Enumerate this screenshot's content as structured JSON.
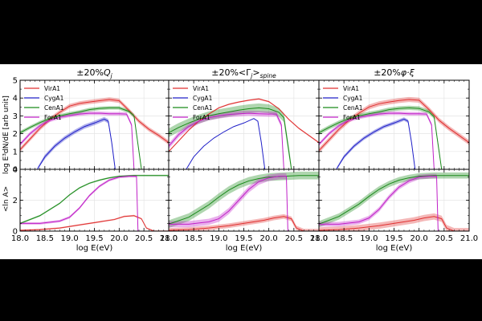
{
  "figure": {
    "ylabel_top": "log E³dN/dE [arb unit]",
    "ylabel_bottom": "<ln A>"
  },
  "chart_data": [
    {
      "type": "line",
      "title": "±20%Q_j",
      "title_parts": [
        "±20%",
        "Q",
        "j"
      ],
      "xlabel": "log E(eV)",
      "xlim": [
        18.0,
        21.0
      ],
      "xticks": [
        "18.0",
        "18.5",
        "19.0",
        "19.5",
        "20.0",
        "20.5",
        "21.0"
      ],
      "top": {
        "ylim": [
          0,
          5
        ],
        "yticks": [
          "0",
          "1",
          "2",
          "3",
          "4",
          "5"
        ],
        "legend_position": "top-left",
        "series": [
          {
            "name": "VirA1",
            "color": "#e03030",
            "band": 0.12,
            "x": [
              18.0,
              18.2,
              18.4,
              18.6,
              18.8,
              19.0,
              19.2,
              19.4,
              19.6,
              19.8,
              20.0,
              20.2,
              20.4,
              20.6,
              20.8,
              21.0
            ],
            "y": [
              1.1,
              1.7,
              2.3,
              2.8,
              3.2,
              3.55,
              3.7,
              3.78,
              3.85,
              3.92,
              3.85,
              3.3,
              2.7,
              2.25,
              1.9,
              1.5
            ]
          },
          {
            "name": "CygA1",
            "color": "#2020c8",
            "band": 0.12,
            "x": [
              18.35,
              18.5,
              18.7,
              18.9,
              19.1,
              19.3,
              19.5,
              19.7,
              19.78,
              19.85,
              19.92
            ],
            "y": [
              0.0,
              0.7,
              1.3,
              1.75,
              2.1,
              2.4,
              2.6,
              2.82,
              2.7,
              1.5,
              0.0
            ]
          },
          {
            "name": "CenA1",
            "color": "#1a8a1a",
            "band": 0.1,
            "x": [
              18.0,
              18.2,
              18.4,
              18.6,
              18.8,
              19.0,
              19.2,
              19.4,
              19.6,
              19.8,
              20.0,
              20.2,
              20.3,
              20.4,
              20.45
            ],
            "y": [
              2.05,
              2.35,
              2.62,
              2.85,
              3.0,
              3.12,
              3.22,
              3.35,
              3.42,
              3.45,
              3.45,
              3.25,
              3.0,
              1.0,
              0.0
            ]
          },
          {
            "name": "ForA1",
            "color": "#c020c8",
            "band": 0.1,
            "x": [
              18.0,
              18.2,
              18.4,
              18.6,
              18.8,
              19.0,
              19.2,
              19.4,
              19.6,
              19.8,
              20.0,
              20.15,
              20.25,
              20.3
            ],
            "y": [
              1.4,
              2.0,
              2.45,
              2.75,
              2.92,
              3.02,
              3.1,
              3.15,
              3.15,
              3.12,
              3.12,
              3.1,
              2.5,
              0.0
            ]
          }
        ]
      },
      "bottom": {
        "ylim": [
          0,
          4
        ],
        "yticks": [
          "0",
          "2",
          "4"
        ],
        "series": [
          {
            "name": "VirA1",
            "color": "#e03030",
            "band": 0.05,
            "x": [
              18.0,
              18.4,
              18.8,
              19.2,
              19.6,
              19.9,
              20.1,
              20.3,
              20.45,
              20.55,
              20.7,
              21.0
            ],
            "y": [
              0.05,
              0.1,
              0.2,
              0.4,
              0.6,
              0.75,
              0.95,
              1.0,
              0.8,
              0.2,
              0.0,
              0.0
            ]
          },
          {
            "name": "CenA1",
            "color": "#1a8a1a",
            "band": 0.05,
            "x": [
              18.0,
              18.4,
              18.8,
              19.0,
              19.2,
              19.4,
              19.6,
              19.8,
              20.0,
              20.3,
              20.6,
              21.0
            ],
            "y": [
              0.5,
              1.0,
              1.8,
              2.35,
              2.8,
              3.1,
              3.3,
              3.45,
              3.55,
              3.6,
              3.6,
              3.6
            ]
          },
          {
            "name": "ForA1",
            "color": "#c020c8",
            "band": 0.08,
            "x": [
              18.0,
              18.4,
              18.8,
              19.0,
              19.2,
              19.4,
              19.6,
              19.8,
              20.0,
              20.2,
              20.35,
              20.38
            ],
            "y": [
              0.5,
              0.5,
              0.65,
              0.9,
              1.5,
              2.3,
              2.9,
              3.3,
              3.5,
              3.55,
              3.55,
              0.0
            ]
          }
        ]
      }
    },
    {
      "type": "line",
      "title": "±20%<Γ_j>_spine",
      "title_parts": [
        "±20%<Γ",
        "j",
        ">",
        "spine"
      ],
      "xlabel": "log E(eV)",
      "xlim": [
        18.0,
        21.0
      ],
      "xticks": [
        "18.0",
        "18.5",
        "19.0",
        "19.5",
        "20.0",
        "20.5",
        "21.0"
      ],
      "top": {
        "ylim": [
          0,
          5
        ],
        "yticks": [
          "0",
          "1",
          "2",
          "3",
          "4",
          "5"
        ],
        "legend_position": "top-left",
        "series": [
          {
            "name": "VirA1",
            "color": "#e03030",
            "band": 0.04,
            "x": [
              18.0,
              18.2,
              18.4,
              18.6,
              18.8,
              19.0,
              19.2,
              19.4,
              19.6,
              19.8,
              20.0,
              20.2,
              20.4,
              20.6,
              20.8,
              21.0
            ],
            "y": [
              1.0,
              1.6,
              2.2,
              2.7,
              3.1,
              3.45,
              3.65,
              3.78,
              3.88,
              3.95,
              3.8,
              3.4,
              2.8,
              2.3,
              1.9,
              1.5
            ]
          },
          {
            "name": "CygA1",
            "color": "#2020c8",
            "band": 0.0,
            "x": [
              18.35,
              18.5,
              18.7,
              18.9,
              19.1,
              19.3,
              19.5,
              19.7,
              19.78,
              19.85,
              19.92
            ],
            "y": [
              0.0,
              0.7,
              1.3,
              1.75,
              2.1,
              2.4,
              2.6,
              2.85,
              2.7,
              1.5,
              0.0
            ]
          },
          {
            "name": "CenA1",
            "color": "#1a8a1a",
            "band": 0.25,
            "x": [
              18.0,
              18.2,
              18.4,
              18.6,
              18.8,
              19.0,
              19.2,
              19.4,
              19.6,
              19.8,
              20.0,
              20.2,
              20.3,
              20.4,
              20.45
            ],
            "y": [
              2.05,
              2.35,
              2.6,
              2.82,
              3.0,
              3.12,
              3.22,
              3.32,
              3.4,
              3.45,
              3.4,
              3.2,
              2.9,
              1.0,
              0.0
            ]
          },
          {
            "name": "ForA1",
            "color": "#c020c8",
            "band": 0.15,
            "x": [
              18.0,
              18.2,
              18.4,
              18.6,
              18.8,
              19.0,
              19.2,
              19.4,
              19.6,
              19.8,
              20.0,
              20.15,
              20.25,
              20.3
            ],
            "y": [
              1.3,
              1.95,
              2.4,
              2.7,
              2.9,
              3.0,
              3.08,
              3.12,
              3.15,
              3.12,
              3.1,
              3.1,
              2.5,
              0.0
            ]
          }
        ]
      },
      "bottom": {
        "ylim": [
          0,
          4
        ],
        "yticks": [
          "0",
          "2",
          "4"
        ],
        "series": [
          {
            "name": "VirA1",
            "color": "#e03030",
            "band": 0.15,
            "x": [
              18.0,
              18.4,
              18.8,
              19.2,
              19.6,
              19.9,
              20.1,
              20.3,
              20.45,
              20.55,
              20.7,
              21.0
            ],
            "y": [
              0.05,
              0.1,
              0.2,
              0.35,
              0.55,
              0.7,
              0.85,
              0.95,
              0.8,
              0.2,
              0.0,
              0.0
            ]
          },
          {
            "name": "CenA1",
            "color": "#1a8a1a",
            "band": 0.25,
            "x": [
              18.0,
              18.4,
              18.8,
              19.0,
              19.2,
              19.4,
              19.6,
              19.8,
              20.0,
              20.3,
              20.6,
              21.0
            ],
            "y": [
              0.45,
              0.9,
              1.7,
              2.2,
              2.65,
              3.0,
              3.25,
              3.4,
              3.5,
              3.55,
              3.6,
              3.6
            ]
          },
          {
            "name": "ForA1",
            "color": "#c020c8",
            "band": 0.2,
            "x": [
              18.0,
              18.4,
              18.8,
              19.0,
              19.2,
              19.4,
              19.6,
              19.8,
              20.0,
              20.2,
              20.35,
              20.38
            ],
            "y": [
              0.45,
              0.45,
              0.6,
              0.8,
              1.3,
              2.0,
              2.7,
              3.2,
              3.45,
              3.55,
              3.55,
              0.0
            ]
          }
        ]
      }
    },
    {
      "type": "line",
      "title": "±20%φ·ξ",
      "title_parts": [
        "±20%",
        "φ·ξ"
      ],
      "xlabel": "log E(eV)",
      "xlim": [
        18.0,
        21.0
      ],
      "xticks": [
        "18.0",
        "18.5",
        "19.0",
        "19.5",
        "20.0",
        "20.5",
        "21.0"
      ],
      "top": {
        "ylim": [
          0,
          5
        ],
        "yticks": [
          "0",
          "1",
          "2",
          "3",
          "4",
          "5"
        ],
        "legend_position": "top-left",
        "series": [
          {
            "name": "VirA1",
            "color": "#e03030",
            "band": 0.14,
            "x": [
              18.0,
              18.2,
              18.4,
              18.6,
              18.8,
              19.0,
              19.2,
              19.4,
              19.6,
              19.8,
              20.0,
              20.2,
              20.4,
              20.6,
              20.8,
              21.0
            ],
            "y": [
              1.05,
              1.65,
              2.25,
              2.75,
              3.15,
              3.5,
              3.68,
              3.78,
              3.86,
              3.92,
              3.88,
              3.35,
              2.75,
              2.3,
              1.9,
              1.5
            ]
          },
          {
            "name": "CygA1",
            "color": "#2020c8",
            "band": 0.1,
            "x": [
              18.35,
              18.5,
              18.7,
              18.9,
              19.1,
              19.3,
              19.5,
              19.7,
              19.78,
              19.85,
              19.92
            ],
            "y": [
              0.0,
              0.7,
              1.3,
              1.75,
              2.1,
              2.4,
              2.6,
              2.82,
              2.7,
              1.5,
              0.0
            ]
          },
          {
            "name": "CenA1",
            "color": "#1a8a1a",
            "band": 0.12,
            "x": [
              18.0,
              18.2,
              18.4,
              18.6,
              18.8,
              19.0,
              19.2,
              19.4,
              19.6,
              19.8,
              20.0,
              20.2,
              20.3,
              20.4,
              20.45
            ],
            "y": [
              2.05,
              2.35,
              2.62,
              2.85,
              3.0,
              3.12,
              3.22,
              3.35,
              3.42,
              3.45,
              3.42,
              3.22,
              2.95,
              1.0,
              0.0
            ]
          },
          {
            "name": "ForA1",
            "color": "#c020c8",
            "band": 0.1,
            "x": [
              18.0,
              18.2,
              18.4,
              18.6,
              18.8,
              19.0,
              19.2,
              19.4,
              19.6,
              19.8,
              20.0,
              20.15,
              20.25,
              20.3
            ],
            "y": [
              1.4,
              2.0,
              2.45,
              2.75,
              2.92,
              3.02,
              3.1,
              3.15,
              3.15,
              3.12,
              3.12,
              3.1,
              2.5,
              0.0
            ]
          }
        ]
      },
      "bottom": {
        "ylim": [
          0,
          4
        ],
        "yticks": [
          "0",
          "2",
          "4"
        ],
        "series": [
          {
            "name": "VirA1",
            "color": "#e03030",
            "band": 0.2,
            "x": [
              18.0,
              18.4,
              18.8,
              19.2,
              19.6,
              19.9,
              20.1,
              20.3,
              20.45,
              20.55,
              20.7,
              21.0
            ],
            "y": [
              0.05,
              0.1,
              0.2,
              0.35,
              0.55,
              0.7,
              0.85,
              0.95,
              0.8,
              0.2,
              0.0,
              0.0
            ]
          },
          {
            "name": "CenA1",
            "color": "#1a8a1a",
            "band": 0.2,
            "x": [
              18.0,
              18.4,
              18.8,
              19.0,
              19.2,
              19.4,
              19.6,
              19.8,
              20.0,
              20.3,
              20.6,
              21.0
            ],
            "y": [
              0.45,
              0.95,
              1.75,
              2.25,
              2.7,
              3.05,
              3.3,
              3.45,
              3.55,
              3.6,
              3.6,
              3.6
            ]
          },
          {
            "name": "ForA1",
            "color": "#c020c8",
            "band": 0.15,
            "x": [
              18.0,
              18.4,
              18.8,
              19.0,
              19.2,
              19.4,
              19.6,
              19.8,
              20.0,
              20.2,
              20.35,
              20.38
            ],
            "y": [
              0.45,
              0.45,
              0.6,
              0.85,
              1.4,
              2.2,
              2.85,
              3.25,
              3.5,
              3.55,
              3.55,
              0.0
            ]
          }
        ]
      }
    }
  ]
}
